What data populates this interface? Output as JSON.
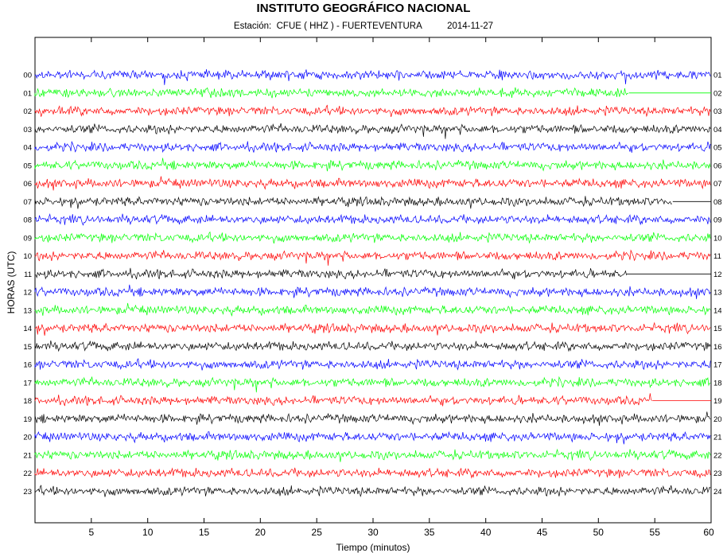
{
  "chart_data": {
    "type": "line",
    "title": "INSTITUTO GEOGRÁFICO NACIONAL",
    "subtitle": {
      "prefix": "Estación:",
      "station": "CFUE ( HHZ ) - FUERTEVENTURA",
      "date": "2014-11-27"
    },
    "xlabel": "Tiempo (minutos)",
    "ylabel": "HORAS (UTC)",
    "xlim": [
      0,
      60
    ],
    "x_ticks": [
      5,
      10,
      15,
      20,
      25,
      30,
      35,
      40,
      45,
      50,
      55,
      60
    ],
    "left_hour_labels": [
      "00",
      "01",
      "02",
      "03",
      "04",
      "05",
      "06",
      "07",
      "08",
      "09",
      "10",
      "11",
      "12",
      "13",
      "14",
      "15",
      "16",
      "17",
      "18",
      "19",
      "20",
      "21",
      "22",
      "23"
    ],
    "right_hour_labels": [
      "01",
      "02",
      "03",
      "04",
      "05",
      "06",
      "07",
      "08",
      "09",
      "10",
      "11",
      "12",
      "13",
      "14",
      "15",
      "16",
      "17",
      "18",
      "19",
      "20",
      "21",
      "22",
      "23",
      "24"
    ],
    "series_colors": [
      "#0000ff",
      "#00ff00",
      "#ff0000",
      "#000000"
    ],
    "data_end_minutes": [
      60,
      52.7,
      60,
      60,
      60,
      60,
      60,
      56.6,
      60,
      60,
      60,
      52.5,
      60,
      60,
      60,
      60,
      60,
      60,
      54.8,
      60,
      60,
      60,
      60,
      60
    ],
    "flatline_to_right": [
      false,
      true,
      false,
      false,
      false,
      false,
      false,
      true,
      false,
      false,
      false,
      true,
      false,
      false,
      false,
      false,
      false,
      false,
      true,
      false,
      false,
      false,
      false,
      false
    ],
    "grid": false
  }
}
